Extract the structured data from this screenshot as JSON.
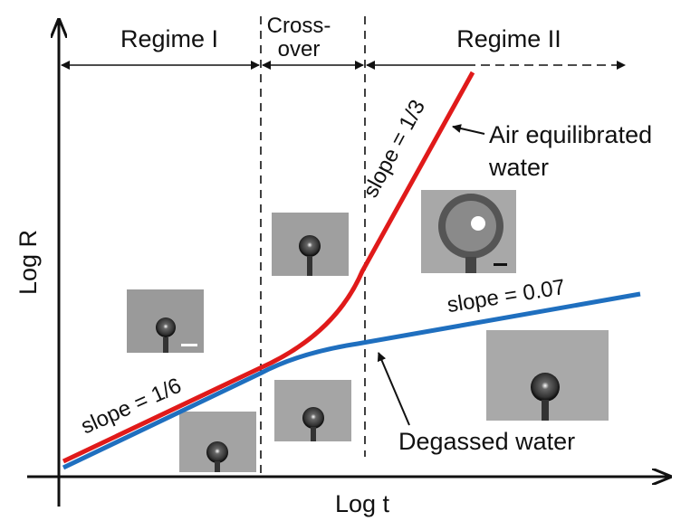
{
  "regimes": {
    "regime_1": "Regime I",
    "crossover_line_1": "Cross-",
    "crossover_line_2": "over",
    "regime_2": "Regime II"
  },
  "axes": {
    "y_label": "Log R",
    "x_label": "Log t"
  },
  "annotations": {
    "slope_red": "slope = 1/3",
    "air_line_1": "Air equilibrated",
    "air_line_2": "water",
    "slope_blue": "slope = 0.07",
    "slope_initial": "slope = 1/6",
    "degassed": "Degassed water"
  }
}
